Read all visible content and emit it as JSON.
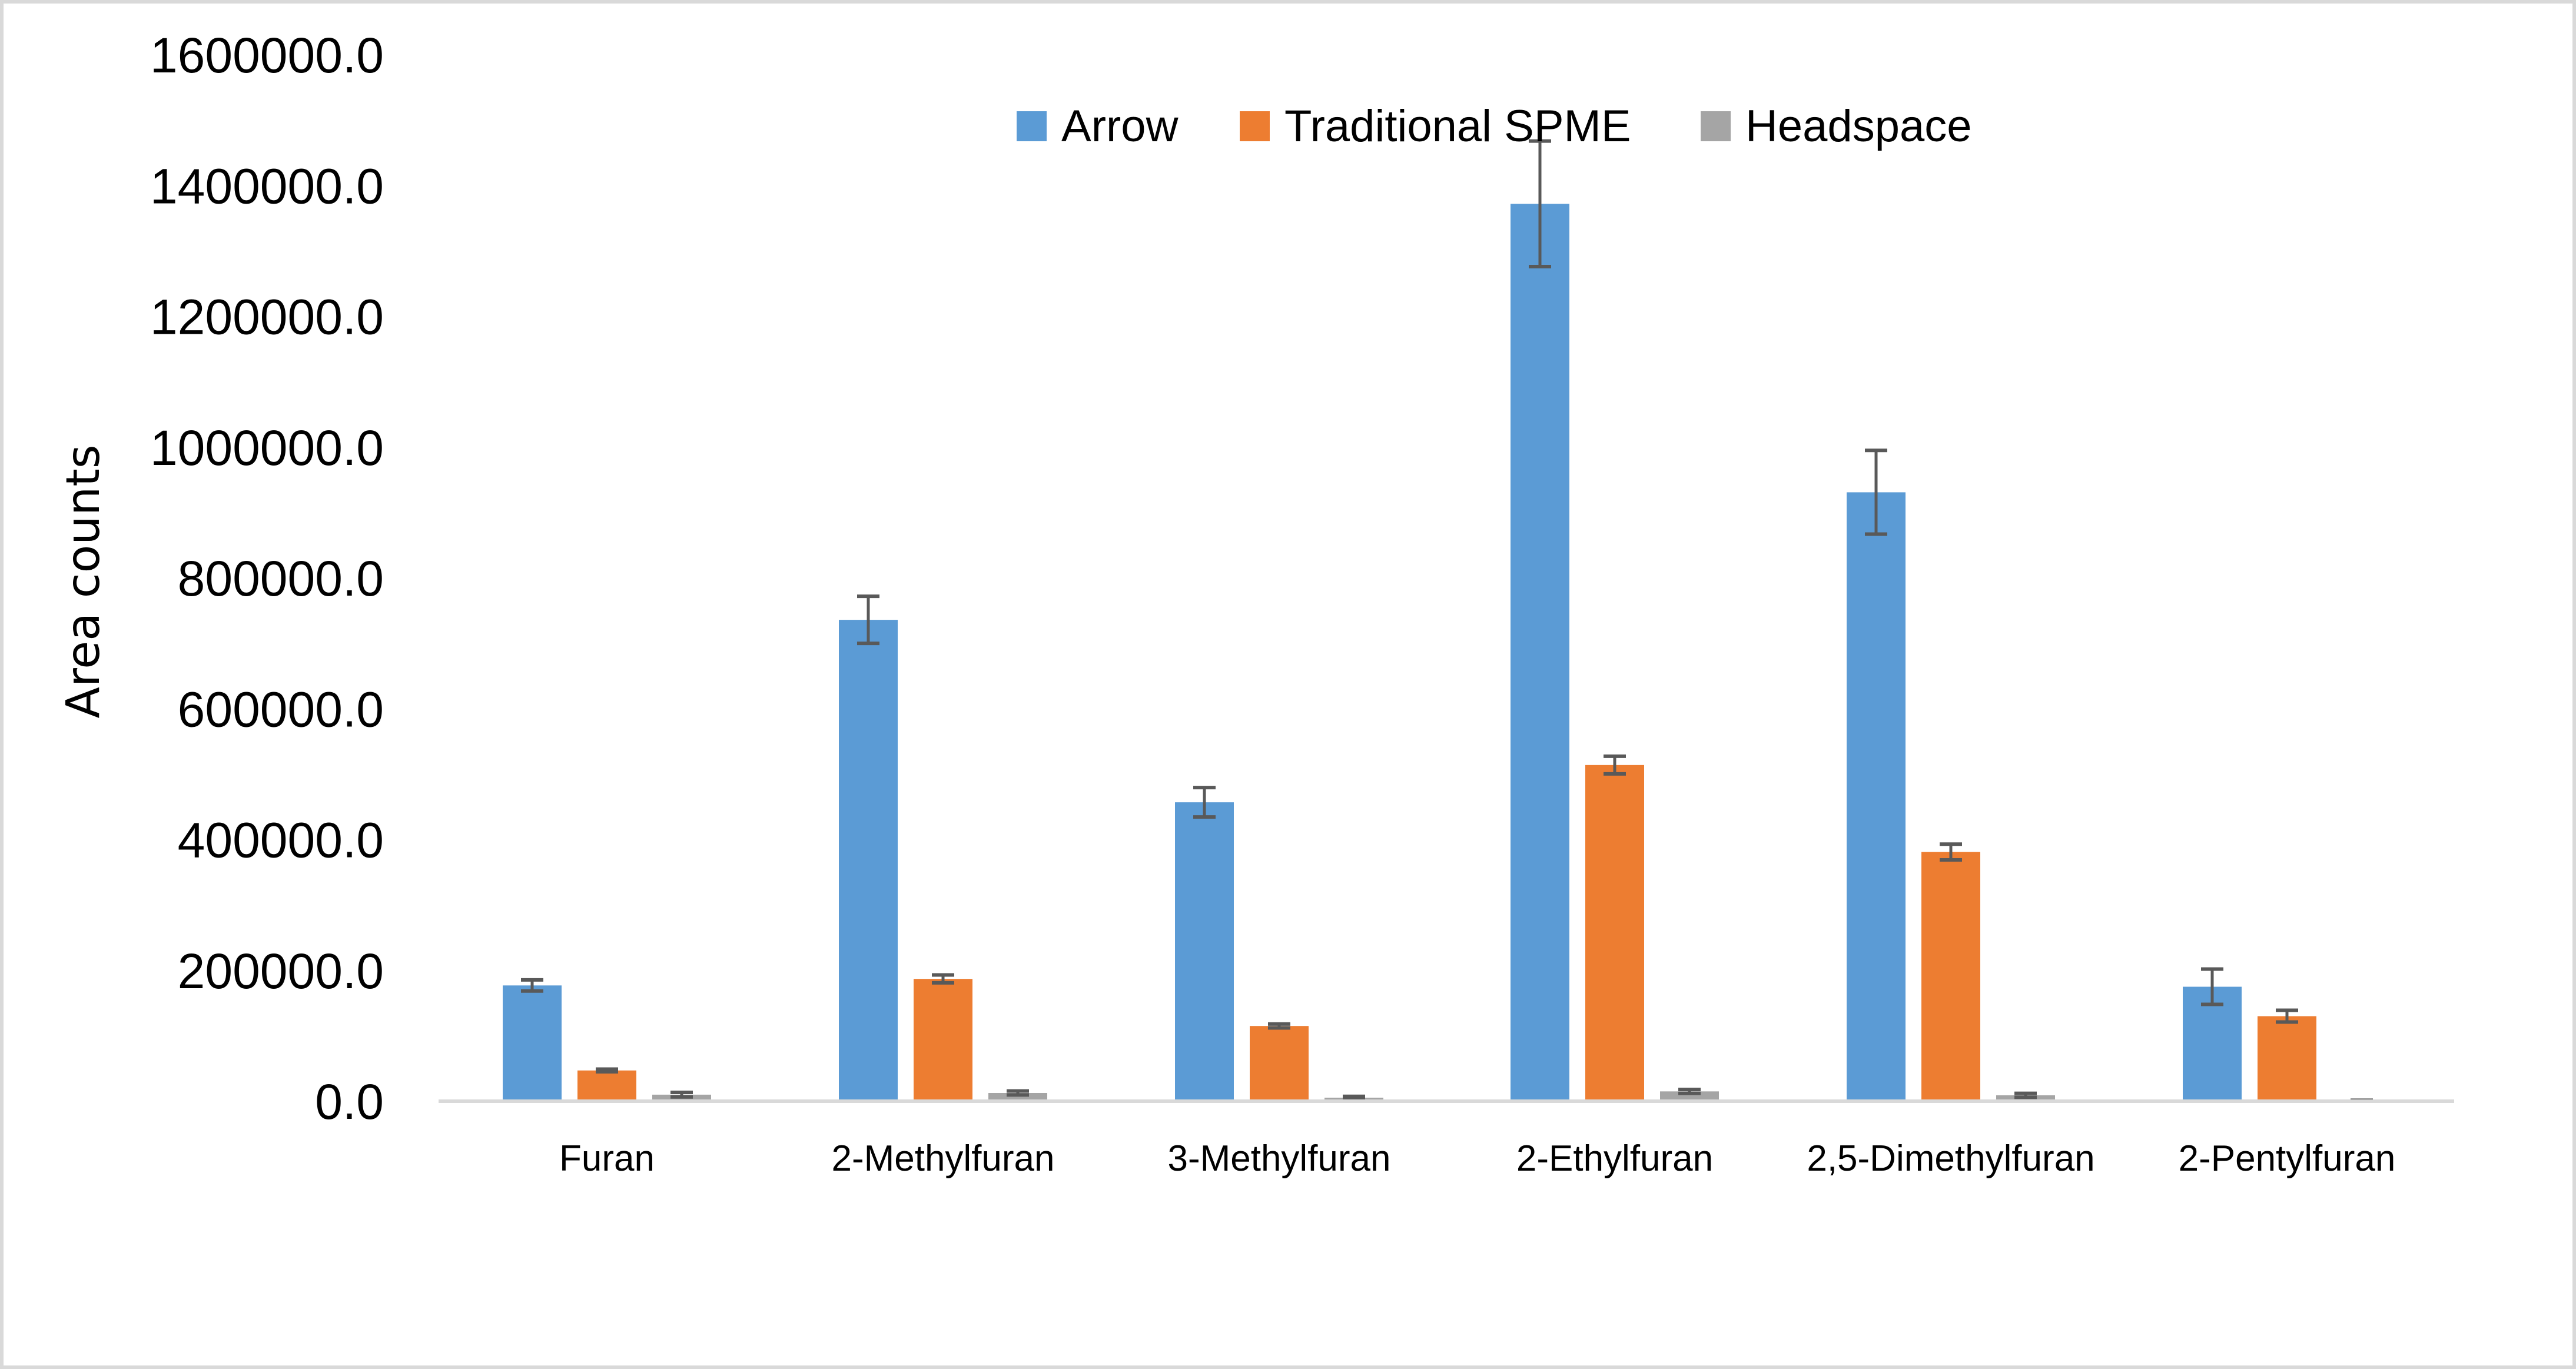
{
  "chart_data": {
    "type": "bar",
    "title": "",
    "xlabel": "",
    "ylabel": "Area counts",
    "ylim": [
      0,
      1600000
    ],
    "yticks": [
      0,
      200000,
      400000,
      600000,
      800000,
      1000000,
      1200000,
      1400000,
      1600000
    ],
    "ytick_labels": [
      "0.0",
      "200000.0",
      "400000.0",
      "600000.0",
      "800000.0",
      "1000000.0",
      "1200000.0",
      "1400000.0",
      "1600000.0"
    ],
    "grid": false,
    "legend_position": "top-center",
    "categories": [
      "Furan",
      "2-Methylfuran",
      "3-Methylfuran",
      "2-Ethylfuran",
      "2,5-Dimethylfuran",
      "2-Pentylfuran"
    ],
    "series": [
      {
        "name": "Arrow",
        "color": "#5B9BD5",
        "values": [
          177000,
          736000,
          457000,
          1372000,
          931000,
          175000
        ],
        "errors": [
          8500,
          36000,
          22500,
          96000,
          64000,
          27000
        ]
      },
      {
        "name": "Traditional SPME",
        "color": "#ED7D31",
        "values": [
          47000,
          187000,
          115000,
          514000,
          381000,
          130000
        ],
        "errors": [
          2000,
          6000,
          3000,
          13500,
          12000,
          9000
        ]
      },
      {
        "name": "Headspace",
        "color": "#A5A5A5",
        "values": [
          10000,
          12600,
          5400,
          15000,
          9000,
          1000
        ],
        "errors": [
          3500,
          3000,
          2000,
          3000,
          3000,
          500
        ]
      }
    ],
    "error_bar_color": "#595959",
    "axis_color": "#D9D9D9"
  }
}
